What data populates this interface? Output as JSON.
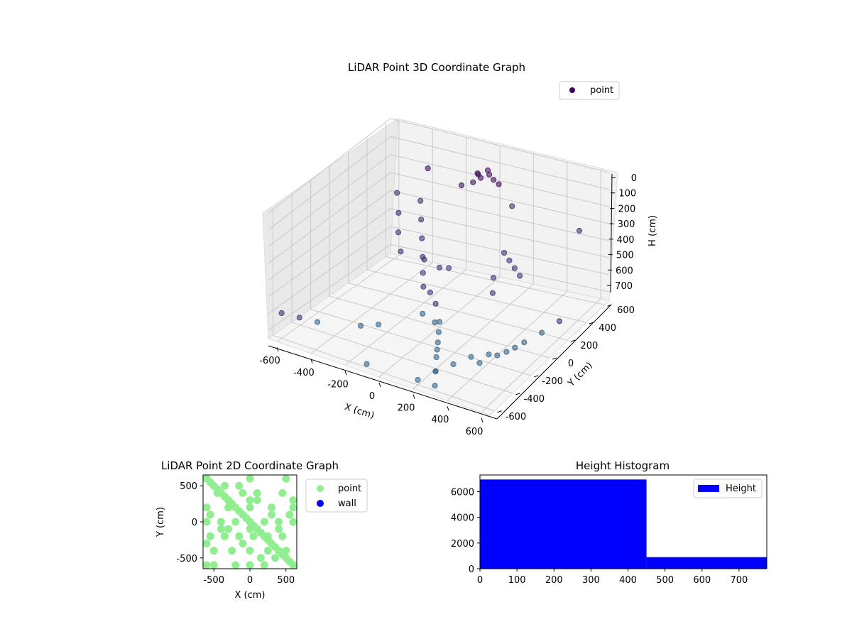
{
  "chart_data": [
    {
      "type": "scatter",
      "projection": "3d",
      "title": "LiDAR Point 3D Coordinate Graph",
      "xlabel": "X (cm)",
      "ylabel": "Y (cm)",
      "zlabel": "H (cm)",
      "x_ticks": [
        -600,
        -400,
        -200,
        0,
        200,
        400,
        600
      ],
      "y_ticks": [
        -600,
        -400,
        -200,
        0,
        200,
        400,
        600
      ],
      "z_ticks": [
        0,
        100,
        200,
        300,
        400,
        500,
        600,
        700
      ],
      "xlim": [
        -650,
        650
      ],
      "ylim": [
        -650,
        650
      ],
      "zlim": [
        0,
        750
      ],
      "z_inverted": true,
      "grid": true,
      "legend": {
        "placement": "top-right",
        "entries": [
          {
            "label": "point",
            "color": "#440154"
          }
        ]
      },
      "colormap": "viridis (by height)",
      "series": [
        {
          "name": "point",
          "x": [
            -500,
            -480,
            -470,
            -450,
            -350,
            -340,
            -330,
            -320,
            -200,
            -180,
            -150,
            -100,
            -50,
            0,
            0,
            50,
            100,
            150,
            200,
            250,
            300,
            350,
            400,
            450,
            500,
            550,
            600,
            -600,
            -550,
            -500,
            -300,
            -250,
            200,
            250,
            300,
            400,
            450,
            500,
            150,
            100,
            -50,
            0,
            20,
            -20,
            40,
            -40,
            60,
            -60,
            0,
            0,
            0,
            300,
            320,
            340,
            360,
            -400,
            -200,
            100,
            500,
            -100
          ],
          "y": [
            450,
            430,
            410,
            400,
            430,
            420,
            410,
            400,
            200,
            150,
            100,
            0,
            50,
            0,
            -50,
            -100,
            -200,
            -300,
            -400,
            -500,
            -600,
            -300,
            -200,
            -100,
            0,
            100,
            200,
            -600,
            -500,
            -400,
            -300,
            -200,
            -600,
            -500,
            -400,
            -300,
            -200,
            -100,
            300,
            400,
            500,
            520,
            500,
            480,
            510,
            490,
            530,
            470,
            0,
            100,
            -100,
            150,
            170,
            190,
            210,
            600,
            600,
            600,
            600,
            -600
          ],
          "z": [
            300,
            400,
            500,
            600,
            300,
            400,
            500,
            600,
            500,
            550,
            600,
            700,
            650,
            720,
            700,
            720,
            720,
            700,
            680,
            700,
            720,
            680,
            700,
            720,
            700,
            680,
            650,
            600,
            650,
            700,
            700,
            720,
            720,
            700,
            690,
            700,
            690,
            680,
            650,
            620,
            100,
            80,
            90,
            110,
            120,
            100,
            150,
            140,
            400,
            450,
            500,
            300,
            350,
            400,
            450,
            200,
            250,
            300,
            350,
            730
          ]
        }
      ]
    },
    {
      "type": "scatter",
      "title": "LiDAR Point 2D Coordinate Graph",
      "xlabel": "X (cm)",
      "ylabel": "Y (cm)",
      "x_ticks": [
        -500,
        0,
        500
      ],
      "y_ticks": [
        -500,
        0,
        500
      ],
      "xlim": [
        -650,
        650
      ],
      "ylim": [
        -650,
        650
      ],
      "legend": {
        "placement": "outside-right",
        "entries": [
          {
            "label": "point",
            "color": "#90ee90"
          },
          {
            "label": "wall",
            "color": "#0000ff"
          }
        ]
      },
      "series": [
        {
          "name": "point",
          "color": "#90ee90",
          "x": [
            -600,
            -550,
            -500,
            -450,
            -400,
            -350,
            -300,
            -250,
            -200,
            -150,
            -100,
            -50,
            0,
            50,
            100,
            150,
            200,
            250,
            300,
            350,
            400,
            450,
            500,
            550,
            600,
            -600,
            -400,
            -200,
            0,
            200,
            400,
            600,
            -550,
            -350,
            -150,
            50,
            250,
            450,
            -600,
            -300,
            0,
            300,
            600,
            -500,
            -250,
            0,
            250,
            500,
            -450,
            -100,
            100,
            450,
            -600,
            -200,
            200,
            600,
            -550,
            0,
            550,
            -300,
            300,
            -100,
            100,
            0,
            -400,
            400,
            -600,
            600,
            0,
            -500,
            500,
            -350,
            350,
            -150,
            150
          ],
          "y": [
            600,
            550,
            500,
            450,
            400,
            350,
            300,
            250,
            200,
            150,
            100,
            50,
            0,
            -50,
            -100,
            -150,
            -200,
            -250,
            -300,
            -350,
            -400,
            -450,
            -500,
            -550,
            -600,
            0,
            0,
            0,
            600,
            0,
            0,
            0,
            -200,
            -200,
            -200,
            -200,
            -200,
            -200,
            200,
            200,
            200,
            200,
            200,
            -400,
            -400,
            -400,
            -400,
            -400,
            400,
            400,
            400,
            400,
            -600,
            -600,
            -600,
            -600,
            100,
            -100,
            100,
            -100,
            100,
            -300,
            300,
            -600,
            -100,
            -100,
            -300,
            300,
            300,
            -600,
            600,
            500,
            -500,
            500,
            -500
          ]
        },
        {
          "name": "wall",
          "color": "#0000ff",
          "x": [],
          "y": []
        }
      ]
    },
    {
      "type": "bar",
      "subtype": "histogram",
      "title": "Height Histogram",
      "x_ticks": [
        0,
        100,
        200,
        300,
        400,
        500,
        600,
        700
      ],
      "y_ticks": [
        0,
        2000,
        4000,
        6000
      ],
      "xlim": [
        0,
        775
      ],
      "ylim": [
        0,
        7300
      ],
      "legend": {
        "placement": "top-right",
        "entries": [
          {
            "label": "Height",
            "color": "#0000ff"
          }
        ]
      },
      "series": [
        {
          "name": "Height",
          "color": "#0000ff",
          "bins": [
            {
              "start": 0,
              "end": 450,
              "count": 6950
            },
            {
              "start": 450,
              "end": 775,
              "count": 900
            }
          ]
        }
      ]
    }
  ]
}
